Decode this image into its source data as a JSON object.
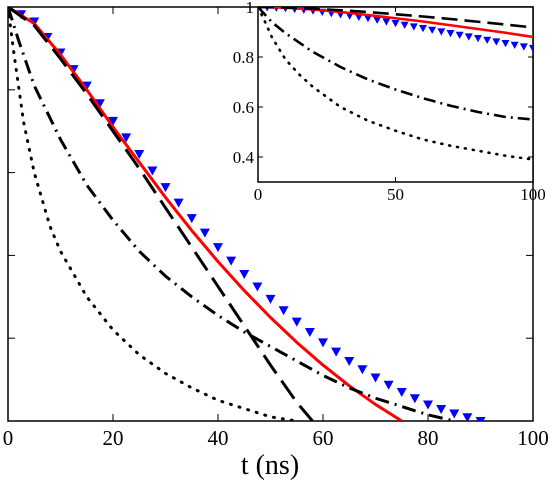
{
  "chart_data": [
    {
      "type": "line",
      "title": "",
      "xlabel": "t (ns)",
      "ylabel": "",
      "xlim": [
        0,
        100
      ],
      "ylim": [
        0,
        1
      ],
      "grid": false,
      "x_ticks": [
        0,
        20,
        40,
        60,
        80,
        100
      ],
      "x_tick_labels": [
        "0",
        "20",
        "40",
        "60",
        "80",
        "100"
      ],
      "y_ticks": [
        0,
        0.2,
        0.4,
        0.6,
        0.8,
        1.0
      ],
      "y_tick_labels": [],
      "series": [
        {
          "style": "triangle-markers",
          "color": "#0000ff",
          "x": [
            0,
            5,
            10,
            15,
            20,
            25,
            30,
            35,
            40,
            45,
            50,
            55,
            60,
            65,
            70,
            75,
            80,
            85,
            90
          ],
          "y": [
            1.0,
            0.965,
            0.89,
            0.81,
            0.725,
            0.645,
            0.565,
            0.49,
            0.42,
            0.355,
            0.295,
            0.24,
            0.19,
            0.145,
            0.105,
            0.07,
            0.04,
            0.018,
            0.0
          ]
        },
        {
          "style": "solid",
          "color": "#ff0000",
          "x": [
            0,
            5,
            10,
            15,
            20,
            25,
            30,
            35,
            40,
            45,
            50,
            55,
            60,
            65,
            70,
            75
          ],
          "y": [
            1.0,
            0.96,
            0.885,
            0.8,
            0.71,
            0.625,
            0.54,
            0.46,
            0.385,
            0.315,
            0.25,
            0.19,
            0.135,
            0.085,
            0.04,
            0.0
          ]
        },
        {
          "style": "dashed",
          "color": "#000000",
          "x": [
            0,
            5,
            10,
            15,
            20,
            25,
            30,
            35,
            40,
            45,
            50,
            55,
            58
          ],
          "y": [
            1.0,
            0.955,
            0.875,
            0.79,
            0.7,
            0.61,
            0.515,
            0.42,
            0.325,
            0.23,
            0.135,
            0.045,
            0.0
          ]
        },
        {
          "style": "dash-dot",
          "color": "#000000",
          "x": [
            0,
            2,
            5,
            10,
            15,
            20,
            25,
            30,
            35,
            40,
            45,
            50,
            55,
            60,
            65,
            70,
            75,
            80,
            85
          ],
          "y": [
            1.0,
            0.92,
            0.81,
            0.68,
            0.57,
            0.485,
            0.41,
            0.35,
            0.3,
            0.255,
            0.215,
            0.18,
            0.145,
            0.11,
            0.08,
            0.055,
            0.035,
            0.015,
            0.0
          ]
        },
        {
          "style": "dotted",
          "color": "#000000",
          "x": [
            0,
            1,
            3,
            5,
            8,
            10,
            15,
            20,
            25,
            30,
            35,
            40,
            45,
            50,
            55
          ],
          "y": [
            1.0,
            0.9,
            0.72,
            0.6,
            0.47,
            0.41,
            0.3,
            0.22,
            0.16,
            0.115,
            0.08,
            0.05,
            0.03,
            0.01,
            0.0
          ]
        }
      ]
    },
    {
      "type": "line",
      "title": "",
      "xlabel": "",
      "ylabel": "",
      "xlim": [
        0,
        100
      ],
      "ylim": [
        0.3,
        1.0
      ],
      "grid": false,
      "x_ticks": [
        0,
        50,
        100
      ],
      "x_tick_labels": [
        "0",
        "50",
        "100"
      ],
      "y_ticks": [
        0.4,
        0.6,
        0.8,
        1.0
      ],
      "y_tick_labels": [
        "0.4",
        "0.6",
        "0.8",
        "1"
      ],
      "series": [
        {
          "style": "triangle-markers",
          "color": "#0000ff",
          "x": [
            0,
            10,
            20,
            30,
            40,
            50,
            60,
            70,
            80,
            90,
            100
          ],
          "y": [
            1.0,
            0.995,
            0.985,
            0.97,
            0.955,
            0.935,
            0.915,
            0.895,
            0.875,
            0.855,
            0.835
          ]
        },
        {
          "style": "solid",
          "color": "#ff0000",
          "x": [
            0,
            10,
            20,
            30,
            40,
            50,
            60,
            70,
            80,
            90,
            100
          ],
          "y": [
            1.0,
            0.997,
            0.99,
            0.98,
            0.968,
            0.955,
            0.942,
            0.927,
            0.912,
            0.897,
            0.88
          ]
        },
        {
          "style": "dashed",
          "color": "#000000",
          "x": [
            0,
            10,
            20,
            30,
            40,
            50,
            60,
            70,
            80,
            90,
            100
          ],
          "y": [
            1.0,
            0.998,
            0.993,
            0.987,
            0.98,
            0.971,
            0.962,
            0.952,
            0.941,
            0.93,
            0.918
          ]
        },
        {
          "style": "dash-dot",
          "color": "#000000",
          "x": [
            0,
            5,
            10,
            20,
            30,
            40,
            50,
            60,
            70,
            80,
            90,
            100
          ],
          "y": [
            1.0,
            0.94,
            0.895,
            0.82,
            0.76,
            0.71,
            0.67,
            0.635,
            0.605,
            0.58,
            0.56,
            0.55
          ]
        },
        {
          "style": "dotted",
          "color": "#000000",
          "x": [
            0,
            3,
            5,
            10,
            15,
            20,
            30,
            40,
            50,
            60,
            70,
            80,
            90,
            100
          ],
          "y": [
            1.0,
            0.93,
            0.88,
            0.79,
            0.73,
            0.68,
            0.6,
            0.545,
            0.505,
            0.47,
            0.445,
            0.425,
            0.405,
            0.39
          ]
        }
      ]
    }
  ]
}
